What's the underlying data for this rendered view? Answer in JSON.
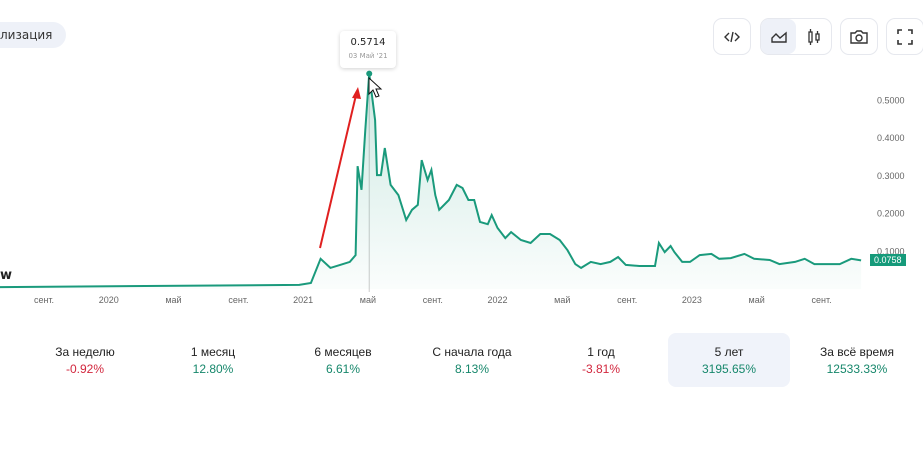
{
  "filter_pill": "лизация",
  "legend_label": "w",
  "toolbar": {
    "buttons": [
      "code-icon",
      "area-chart-icon",
      "candles-icon",
      "camera-icon",
      "fullscreen-icon"
    ],
    "active": "area-chart-icon"
  },
  "tooltip": {
    "value": "0.5714",
    "date": "03 Май '21"
  },
  "last_price": "0.0758",
  "colors": {
    "line": "#1a9a7c",
    "positive": "#16876b",
    "negative": "#d2263d",
    "arrow": "#e02020"
  },
  "stats": [
    {
      "label": "За неделю",
      "value": "-0.92%",
      "sign": "neg"
    },
    {
      "label": "1 месяц",
      "value": "12.80%",
      "sign": "pos"
    },
    {
      "label": "6 месяцев",
      "value": "6.61%",
      "sign": "pos"
    },
    {
      "label": "С начала года",
      "value": "8.13%",
      "sign": "pos"
    },
    {
      "label": "1 год",
      "value": "-3.81%",
      "sign": "neg"
    },
    {
      "label": "5 лет",
      "value": "3195.65%",
      "sign": "pos",
      "selected": true
    },
    {
      "label": "За всё время",
      "value": "12533.33%",
      "sign": "pos"
    }
  ],
  "chart_data": {
    "type": "area",
    "title": "",
    "xlabel": "",
    "ylabel": "",
    "ylim": [
      0,
      0.55
    ],
    "y_ticks": [
      {
        "v": 0.1,
        "label": "0.1000"
      },
      {
        "v": 0.2,
        "label": "0.2000"
      },
      {
        "v": 0.3,
        "label": "0.3000"
      },
      {
        "v": 0.4,
        "label": "0.4000"
      },
      {
        "v": 0.5,
        "label": "0.5000"
      }
    ],
    "x_ticks": [
      {
        "x": 2019.667,
        "label": "сент."
      },
      {
        "x": 2020.0,
        "label": "2020"
      },
      {
        "x": 2020.333,
        "label": "май"
      },
      {
        "x": 2020.667,
        "label": "сент."
      },
      {
        "x": 2021.0,
        "label": "2021"
      },
      {
        "x": 2021.333,
        "label": "май"
      },
      {
        "x": 2021.667,
        "label": "сент."
      },
      {
        "x": 2022.0,
        "label": "2022"
      },
      {
        "x": 2022.333,
        "label": "май"
      },
      {
        "x": 2022.667,
        "label": "сент."
      },
      {
        "x": 2023.0,
        "label": "2023"
      },
      {
        "x": 2023.333,
        "label": "май"
      },
      {
        "x": 2023.667,
        "label": "сент."
      }
    ],
    "highlight": {
      "x": 2021.34,
      "y": 0.5714
    },
    "series": [
      {
        "name": "price",
        "points": [
          [
            2019.44,
            0.005
          ],
          [
            2020.98,
            0.011
          ],
          [
            2021.04,
            0.016
          ],
          [
            2021.09,
            0.08
          ],
          [
            2021.14,
            0.056
          ],
          [
            2021.19,
            0.064
          ],
          [
            2021.24,
            0.072
          ],
          [
            2021.27,
            0.09
          ],
          [
            2021.28,
            0.326
          ],
          [
            2021.3,
            0.263
          ],
          [
            2021.32,
            0.422
          ],
          [
            2021.34,
            0.5714
          ],
          [
            2021.37,
            0.448
          ],
          [
            2021.38,
            0.302
          ],
          [
            2021.4,
            0.302
          ],
          [
            2021.42,
            0.374
          ],
          [
            2021.45,
            0.276
          ],
          [
            2021.49,
            0.249
          ],
          [
            2021.53,
            0.183
          ],
          [
            2021.56,
            0.21
          ],
          [
            2021.59,
            0.223
          ],
          [
            2021.61,
            0.342
          ],
          [
            2021.64,
            0.289
          ],
          [
            2021.66,
            0.316
          ],
          [
            2021.68,
            0.249
          ],
          [
            2021.7,
            0.21
          ],
          [
            2021.75,
            0.236
          ],
          [
            2021.79,
            0.276
          ],
          [
            2021.82,
            0.268
          ],
          [
            2021.85,
            0.236
          ],
          [
            2021.88,
            0.236
          ],
          [
            2021.91,
            0.178
          ],
          [
            2021.95,
            0.172
          ],
          [
            2021.97,
            0.196
          ],
          [
            2022.0,
            0.162
          ],
          [
            2022.04,
            0.135
          ],
          [
            2022.07,
            0.151
          ],
          [
            2022.12,
            0.13
          ],
          [
            2022.17,
            0.122
          ],
          [
            2022.22,
            0.146
          ],
          [
            2022.27,
            0.146
          ],
          [
            2022.32,
            0.13
          ],
          [
            2022.36,
            0.103
          ],
          [
            2022.4,
            0.066
          ],
          [
            2022.43,
            0.056
          ],
          [
            2022.48,
            0.072
          ],
          [
            2022.53,
            0.066
          ],
          [
            2022.58,
            0.072
          ],
          [
            2022.62,
            0.085
          ],
          [
            2022.66,
            0.064
          ],
          [
            2022.73,
            0.061
          ],
          [
            2022.81,
            0.061
          ],
          [
            2022.83,
            0.122
          ],
          [
            2022.86,
            0.098
          ],
          [
            2022.89,
            0.114
          ],
          [
            2022.91,
            0.098
          ],
          [
            2022.95,
            0.072
          ],
          [
            2022.99,
            0.072
          ],
          [
            2023.04,
            0.09
          ],
          [
            2023.1,
            0.093
          ],
          [
            2023.14,
            0.08
          ],
          [
            2023.2,
            0.082
          ],
          [
            2023.27,
            0.093
          ],
          [
            2023.32,
            0.08
          ],
          [
            2023.4,
            0.077
          ],
          [
            2023.45,
            0.066
          ],
          [
            2023.53,
            0.072
          ],
          [
            2023.58,
            0.08
          ],
          [
            2023.63,
            0.066
          ],
          [
            2023.76,
            0.066
          ],
          [
            2023.82,
            0.08
          ],
          [
            2023.87,
            0.0758
          ]
        ]
      }
    ]
  }
}
